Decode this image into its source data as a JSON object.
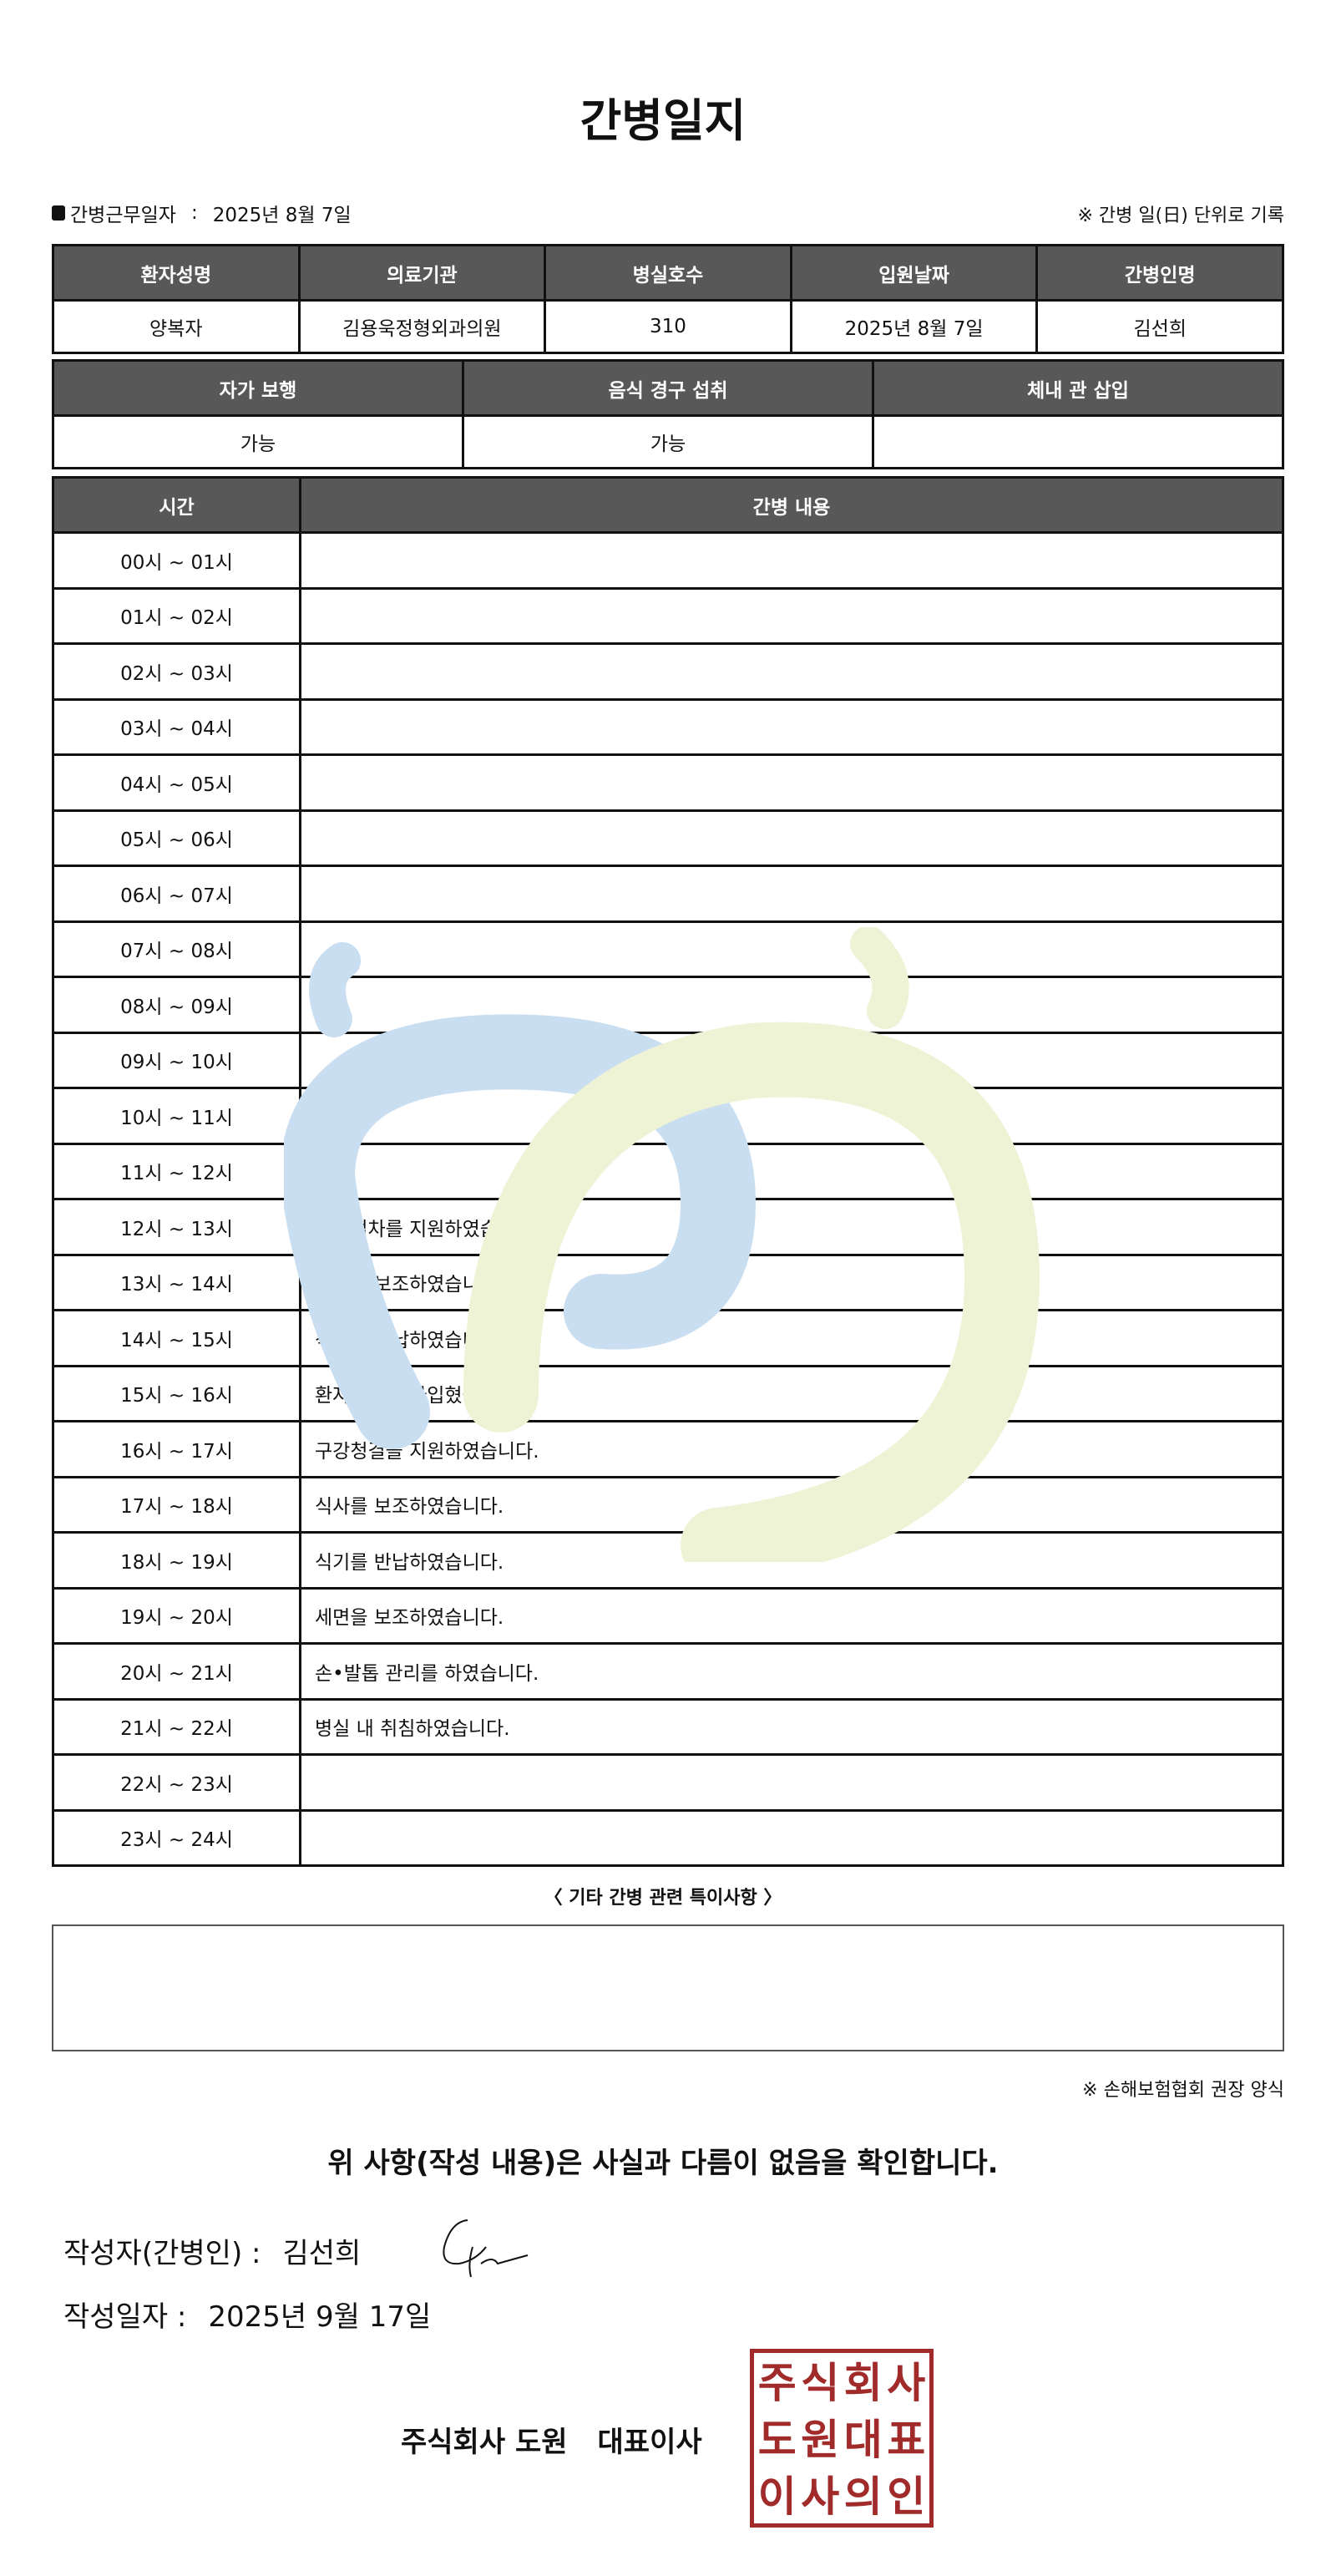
{
  "title": "간병일지",
  "info": {
    "label": "간병근무일자",
    "sep": ":",
    "value": "2025년 8월 7일",
    "note": "※ 간병 일(日) 단위로 기록"
  },
  "table1": {
    "headers": [
      "환자성명",
      "의료기관",
      "병실호수",
      "입원날짜",
      "간병인명"
    ],
    "values": [
      "양복자",
      "김용욱정형외과의원",
      "310",
      "2025년 8월 7일",
      "김선희"
    ]
  },
  "table2": {
    "headers": [
      "자가 보행",
      "음식 경구 섭취",
      "체내 관 삽입"
    ],
    "values": [
      "가능",
      "가능",
      ""
    ]
  },
  "log": {
    "headers": [
      "시간",
      "간병 내용"
    ],
    "rows": [
      {
        "time": "00시 ~ 01시",
        "content": ""
      },
      {
        "time": "01시 ~ 02시",
        "content": ""
      },
      {
        "time": "02시 ~ 03시",
        "content": ""
      },
      {
        "time": "03시 ~ 04시",
        "content": ""
      },
      {
        "time": "04시 ~ 05시",
        "content": ""
      },
      {
        "time": "05시 ~ 06시",
        "content": ""
      },
      {
        "time": "06시 ~ 07시",
        "content": ""
      },
      {
        "time": "07시 ~ 08시",
        "content": ""
      },
      {
        "time": "08시 ~ 09시",
        "content": ""
      },
      {
        "time": "09시 ~ 10시",
        "content": ""
      },
      {
        "time": "10시 ~ 11시",
        "content": ""
      },
      {
        "time": "11시 ~ 12시",
        "content": ""
      },
      {
        "time": "12시 ~ 13시",
        "content": "입원절차를 지원하였습니다."
      },
      {
        "time": "13시 ~ 14시",
        "content": "식사를 보조하였습니다."
      },
      {
        "time": "14시 ~ 15시",
        "content": "식기를 반납하였습니다."
      },
      {
        "time": "15시 ~ 16시",
        "content": "환자복을 갈아입혔습니다."
      },
      {
        "time": "16시 ~ 17시",
        "content": "구강청결을 지원하였습니다."
      },
      {
        "time": "17시 ~ 18시",
        "content": "식사를 보조하였습니다."
      },
      {
        "time": "18시 ~ 19시",
        "content": "식기를 반납하였습니다."
      },
      {
        "time": "19시 ~ 20시",
        "content": "세면을 보조하였습니다."
      },
      {
        "time": "20시 ~ 21시",
        "content": "손•발톱 관리를 하였습니다."
      },
      {
        "time": "21시 ~ 22시",
        "content": "병실 내 취침하였습니다."
      },
      {
        "time": "22시 ~ 23시",
        "content": ""
      },
      {
        "time": "23시 ~ 24시",
        "content": ""
      }
    ]
  },
  "special": {
    "title": "〈 기타 간병 관련 특이사항 〉",
    "content": ""
  },
  "form_note": "※ 손해보험협회 권장 양식",
  "confirm": "위 사항(작성 내용)은 사실과 다름이 없음을 확인합니다.",
  "writer": {
    "label": "작성자(간병인) :",
    "value": "김선희"
  },
  "written_date": {
    "label": "작성일자 :",
    "value": "2025년 9월 17일"
  },
  "company": {
    "name": "주식회사 도원",
    "role": "대표이사"
  },
  "seal": {
    "text": "주식회사도원대표이사의인",
    "color": "#a12b2b"
  },
  "colors": {
    "header_bg": "#585858",
    "watermark_blue": "#c9def0",
    "watermark_green": "#eef3d6"
  }
}
